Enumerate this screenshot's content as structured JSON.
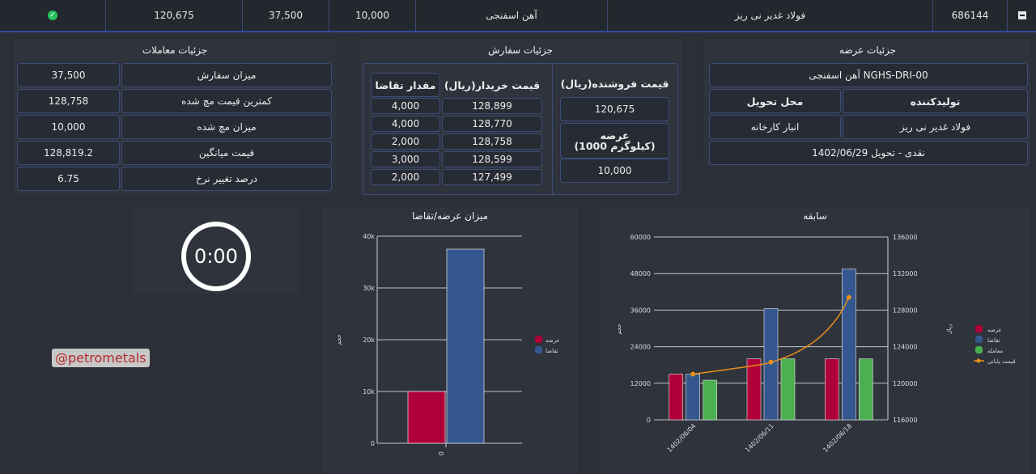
{
  "top_row": {
    "code": "686144",
    "product": "فولاد غدیر نی ریز",
    "category": "آهن اسفنجی",
    "qty": "10,000",
    "order_amount": "37,500",
    "price": "120,675"
  },
  "supply_details": {
    "title": "جزئیات عرضه",
    "product_code": "آهن اسفنجی NGHS-DRI-00",
    "producer_label": "تولیدکننده",
    "delivery_place_label": "محل تحویل",
    "producer": "فولاد غدیر نی ریز",
    "delivery_place": "انبار کارخانه",
    "payment": "نقدی - تحویل 1402/06/29"
  },
  "order_details": {
    "title": "جزئیات سفارش",
    "seller_price_label": "قیمت فروشنده(ریال)",
    "seller_price": "120,675",
    "supply_label_1": "عرضه",
    "supply_label_2": "(1000 کیلوگرم)",
    "supply_value": "10,000",
    "buy_price_label": "قیمت خریدار(ریال)",
    "demand_qty_label": "مقدار تقاضا",
    "rows": [
      {
        "price": "128,899",
        "qty": "4,000"
      },
      {
        "price": "128,770",
        "qty": "4,000"
      },
      {
        "price": "128,758",
        "qty": "2,000"
      },
      {
        "price": "128,599",
        "qty": "3,000"
      },
      {
        "price": "127,499",
        "qty": "2,000"
      }
    ]
  },
  "trade_details": {
    "title": "جزئیات معاملات",
    "rows": [
      {
        "label": "میزان سفارش",
        "value": "37,500"
      },
      {
        "label": "کمترین قیمت مچ شده",
        "value": "128,758"
      },
      {
        "label": "میزان مچ شده",
        "value": "10,000"
      },
      {
        "label": "قیمت میانگین",
        "value": "128,819.2"
      },
      {
        "label": "درصد تغییر نرخ",
        "value": "6.75"
      }
    ]
  },
  "timer": {
    "value": "0:00"
  },
  "watermark": "@petrometals",
  "colors": {
    "supply": "#b0003a",
    "demand": "#34578f",
    "trade": "#4caf50",
    "line": "#e8901a",
    "border": "#3b4d7a"
  },
  "chart_data": [
    {
      "type": "bar",
      "title": "سابقه",
      "categories": [
        "1402/06/04",
        "1402/06/11",
        "1402/06/18"
      ],
      "ylim": [
        0,
        60000
      ],
      "y_ticks": [
        "0",
        "12000",
        "24000",
        "36000",
        "48000",
        "60000"
      ],
      "y2lim": [
        116000,
        136000
      ],
      "y2_ticks": [
        "116000",
        "120000",
        "124000",
        "128000",
        "132000",
        "136000"
      ],
      "ylabel": "حجم",
      "y2label": "ریال",
      "legend": [
        "عرضه",
        "تقاضا",
        "معامله",
        "قیمت پایانی"
      ],
      "legend_position": "right",
      "series": [
        {
          "name": "عرضه",
          "values": [
            15000,
            20000,
            20000
          ]
        },
        {
          "name": "تقاضا",
          "values": [
            15000,
            36500,
            49500
          ]
        },
        {
          "name": "معامله",
          "values": [
            13000,
            20000,
            20000
          ]
        },
        {
          "name": "قیمت پایانی",
          "type": "line",
          "axis": "y2",
          "values": [
            121000,
            122300,
            129400
          ]
        }
      ]
    },
    {
      "type": "bar",
      "title": "میزان عرضه/تقاضا",
      "categories": [
        "0"
      ],
      "ylim": [
        0,
        40000
      ],
      "y_ticks": [
        "0",
        "10k",
        "20k",
        "30k",
        "40k"
      ],
      "ylabel": "حجم",
      "legend": [
        "عرضه",
        "تقاضا"
      ],
      "legend_position": "right",
      "series": [
        {
          "name": "عرضه",
          "values": [
            10000
          ]
        },
        {
          "name": "تقاضا",
          "values": [
            37500
          ]
        }
      ]
    }
  ]
}
